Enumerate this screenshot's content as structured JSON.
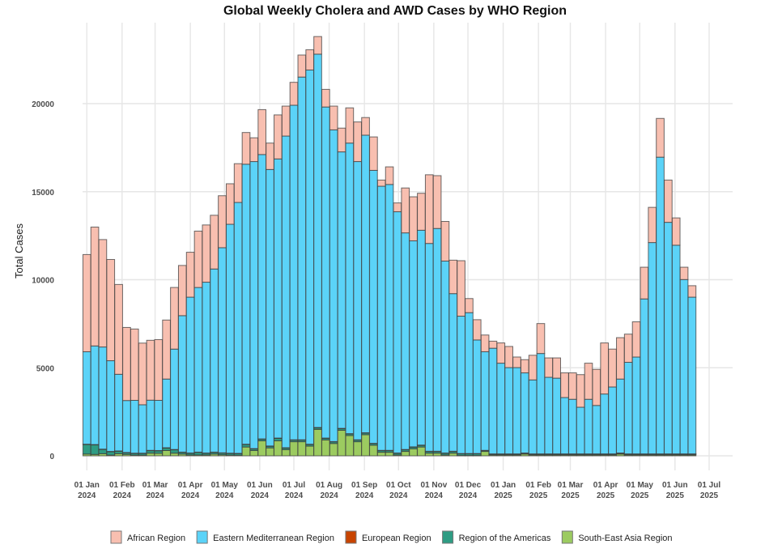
{
  "chart_data": {
    "type": "bar",
    "stacked": true,
    "title": "Global Weekly Cholera and AWD Cases by WHO Region",
    "xlabel": "",
    "ylabel": "Total Cases",
    "ylim": [
      0,
      24000
    ],
    "yticks": [
      0,
      5000,
      10000,
      15000,
      20000
    ],
    "grid": true,
    "legend_position": "bottom",
    "x_start": "2024-01-01",
    "x_interval_days": 7,
    "x_range": [
      "2023-12-24",
      "2025-07-06"
    ],
    "xticks": [
      {
        "date": "2024-01-01",
        "label": [
          "01 Jan",
          "2024"
        ]
      },
      {
        "date": "2024-02-01",
        "label": [
          "01 Feb",
          "2024"
        ]
      },
      {
        "date": "2024-03-01",
        "label": [
          "01 Mar",
          "2024"
        ]
      },
      {
        "date": "2024-04-01",
        "label": [
          "01 Apr",
          "2024"
        ]
      },
      {
        "date": "2024-05-01",
        "label": [
          "01 May",
          "2024"
        ]
      },
      {
        "date": "2024-06-01",
        "label": [
          "01 Jun",
          "2024"
        ]
      },
      {
        "date": "2024-07-01",
        "label": [
          "01 Jul",
          "2024"
        ]
      },
      {
        "date": "2024-08-01",
        "label": [
          "01 Aug",
          "2024"
        ]
      },
      {
        "date": "2024-09-01",
        "label": [
          "01 Sep",
          "2024"
        ]
      },
      {
        "date": "2024-10-01",
        "label": [
          "01 Oct",
          "2024"
        ]
      },
      {
        "date": "2024-11-01",
        "label": [
          "01 Nov",
          "2024"
        ]
      },
      {
        "date": "2024-12-01",
        "label": [
          "01 Dec",
          "2024"
        ]
      },
      {
        "date": "2025-01-01",
        "label": [
          "01 Jan",
          "2025"
        ]
      },
      {
        "date": "2025-02-01",
        "label": [
          "01 Feb",
          "2025"
        ]
      },
      {
        "date": "2025-03-01",
        "label": [
          "01 Mar",
          "2025"
        ]
      },
      {
        "date": "2025-04-01",
        "label": [
          "01 Apr",
          "2025"
        ]
      },
      {
        "date": "2025-05-01",
        "label": [
          "01 May",
          "2025"
        ]
      },
      {
        "date": "2025-06-01",
        "label": [
          "01 Jun",
          "2025"
        ]
      },
      {
        "date": "2025-07-01",
        "label": [
          "01 Jul",
          "2025"
        ]
      }
    ],
    "stack_order": [
      "South-East Asia Region",
      "Region of the Americas",
      "European Region",
      "Eastern Mediterranean Region",
      "African Region"
    ],
    "series": [
      {
        "name": "African Region",
        "color": "#F8BFB0",
        "values": [
          5520,
          6750,
          6100,
          5750,
          5100,
          4150,
          4050,
          3500,
          3400,
          3450,
          3350,
          3500,
          2850,
          2550,
          3200,
          3250,
          3050,
          2950,
          2300,
          2200,
          1800,
          1350,
          2550,
          1500,
          2500,
          1700,
          1300,
          1250,
          1150,
          1000,
          1000,
          1350,
          1350,
          2000,
          2250,
          1000,
          1900,
          350,
          1000,
          500,
          2550,
          2500,
          2100,
          3900,
          3000,
          2250,
          1900,
          3150,
          800,
          1150,
          950,
          400,
          1150,
          1200,
          600,
          750,
          1400,
          1700,
          1100,
          1150,
          1400,
          1500,
          1850,
          2050,
          2050,
          2900,
          2150,
          2350,
          1600,
          2000,
          1800,
          2000,
          2200,
          2400,
          1550,
          700,
          650
        ]
      },
      {
        "name": "Eastern Mediterranean Region",
        "color": "#5BD3F8",
        "values": [
          5250,
          5600,
          5800,
          5150,
          4350,
          2950,
          3000,
          2750,
          2850,
          2850,
          3900,
          5700,
          7750,
          8850,
          9350,
          9700,
          10400,
          11650,
          13000,
          14250,
          15900,
          16300,
          16150,
          15700,
          15850,
          17700,
          19000,
          20600,
          21250,
          21200,
          18800,
          17700,
          15700,
          16500,
          15800,
          16900,
          15500,
          15000,
          15100,
          13700,
          12300,
          11700,
          12200,
          11800,
          12650,
          10900,
          8950,
          7800,
          8000,
          6450,
          5600,
          6000,
          5150,
          4900,
          4900,
          4550,
          4200,
          5700,
          4350,
          4300,
          3200,
          3100,
          2650,
          3100,
          2750,
          3400,
          3800,
          4200,
          5200,
          5500,
          8800,
          12000,
          16850,
          13150,
          11850,
          9900,
          8900
        ]
      },
      {
        "name": "European Region",
        "color": "#C84400",
        "values": [
          10,
          10,
          10,
          10,
          10,
          10,
          10,
          10,
          10,
          10,
          10,
          10,
          10,
          10,
          10,
          10,
          10,
          10,
          10,
          10,
          10,
          10,
          10,
          10,
          10,
          10,
          10,
          10,
          10,
          10,
          10,
          10,
          10,
          10,
          10,
          10,
          10,
          10,
          10,
          10,
          10,
          10,
          10,
          10,
          10,
          10,
          10,
          10,
          10,
          10,
          10,
          10,
          10,
          10,
          10,
          10,
          10,
          10,
          10,
          10,
          10,
          10,
          10,
          10,
          10,
          10,
          10,
          10,
          10,
          10,
          10,
          10,
          10,
          10,
          10,
          10,
          10
        ]
      },
      {
        "name": "Region of the Americas",
        "color": "#2E9C83",
        "values": [
          550,
          550,
          250,
          200,
          150,
          100,
          100,
          100,
          150,
          150,
          150,
          200,
          100,
          100,
          150,
          100,
          100,
          100,
          100,
          100,
          150,
          100,
          100,
          100,
          150,
          100,
          100,
          100,
          100,
          100,
          100,
          100,
          100,
          100,
          100,
          100,
          100,
          100,
          100,
          100,
          100,
          100,
          100,
          100,
          100,
          100,
          100,
          100,
          100,
          100,
          50,
          50,
          50,
          50,
          50,
          50,
          50,
          50,
          50,
          50,
          50,
          50,
          50,
          50,
          50,
          50,
          50,
          50,
          50,
          50,
          50,
          50,
          50,
          50,
          50,
          50,
          50
        ]
      },
      {
        "name": "South-East Asia Region",
        "color": "#9CCB60",
        "values": [
          100,
          80,
          120,
          40,
          120,
          80,
          40,
          40,
          150,
          140,
          300,
          150,
          100,
          50,
          50,
          50,
          100,
          60,
          40,
          30,
          500,
          300,
          850,
          450,
          850,
          350,
          800,
          800,
          550,
          1500,
          900,
          700,
          1450,
          1150,
          800,
          1200,
          600,
          200,
          200,
          50,
          250,
          400,
          500,
          150,
          150,
          50,
          150,
          20,
          20,
          20,
          250,
          50,
          50,
          50,
          50,
          100,
          50,
          50,
          50,
          50,
          50,
          50,
          50,
          50,
          50,
          50,
          50,
          100,
          50,
          50,
          50,
          50,
          50,
          50,
          50,
          50,
          50
        ]
      }
    ]
  }
}
